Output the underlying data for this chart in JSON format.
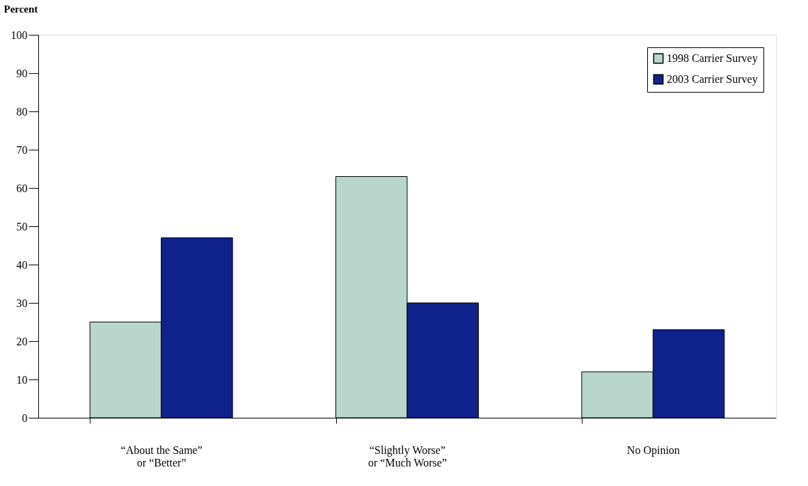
{
  "chart_data": {
    "type": "bar",
    "ylabel": "Percent",
    "categories": [
      "“About the Same”\nor “Better”",
      "“Slightly Worse”\nor “Much Worse”",
      "No Opinion"
    ],
    "series": [
      {
        "name": "1998 Carrier Survey",
        "color": "#b8d6cb",
        "values": [
          25,
          63,
          12
        ]
      },
      {
        "name": "2003 Carrier Survey",
        "color": "#0f228c",
        "values": [
          47,
          30,
          23
        ]
      }
    ],
    "ylim": [
      0,
      100
    ],
    "yticks": [
      0,
      10,
      20,
      30,
      40,
      50,
      60,
      70,
      80,
      90,
      100
    ],
    "grid": false,
    "legend": "top right"
  }
}
